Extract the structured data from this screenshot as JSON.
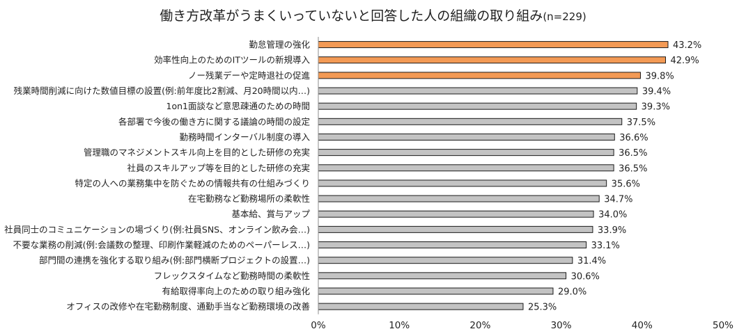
{
  "chart_data": {
    "type": "bar",
    "orientation": "horizontal",
    "title": "働き方改革がうまくいっていないと回答した人の組織の取り組み",
    "title_suffix": "(n=229)",
    "categories": [
      "勤怠管理の強化",
      "効率性向上のためのITツールの新規導入",
      "ノー残業デーや定時退社の促進",
      "残業時間削減に向けた数値目標の設置(例:前年度比2割減、月20時間以内…)",
      "1on1面談など意思疎通のための時間",
      "各部署で今後の働き方に関する議論の時間の設定",
      "勤務時間インターバル制度の導入",
      "管理職のマネジメントスキル向上を目的とした研修の充実",
      "社員のスキルアップ等を目的とした研修の充実",
      "特定の人への業務集中を防ぐための情報共有の仕組みづくり",
      "在宅勤務など勤務場所の柔軟性",
      "基本給、賞与アップ",
      "社員同士のコミュニケーションの場づくり(例:社員SNS、オンライン飲み会…)",
      "不要な業務の削減(例:会議数の整理、印刷作業軽減のためのペーパーレス…)",
      "部門間の連携を強化する取り組み(例:部門横断プロジェクトの設置…)",
      "フレックスタイムなど勤務時間の柔軟性",
      "有給取得率向上のための取り組み強化",
      "オフィスの改修や在宅勤務制度、通勤手当など勤務環境の改善"
    ],
    "values": [
      43.2,
      42.9,
      39.8,
      39.4,
      39.3,
      37.5,
      36.6,
      36.5,
      36.5,
      35.6,
      34.7,
      34.0,
      33.9,
      33.1,
      31.4,
      30.6,
      29.0,
      25.3
    ],
    "value_labels": [
      "43.2%",
      "42.9%",
      "39.8%",
      "39.4%",
      "39.3%",
      "37.5%",
      "36.6%",
      "36.5%",
      "36.5%",
      "35.6%",
      "34.7%",
      "34.0%",
      "33.9%",
      "33.1%",
      "31.4%",
      "30.6%",
      "29.0%",
      "25.3%"
    ],
    "highlighted_count": 3,
    "xlim": [
      0,
      50
    ],
    "xticks": [
      0,
      10,
      20,
      30,
      40,
      50
    ],
    "xtick_labels": [
      "0%",
      "10%",
      "20%",
      "30%",
      "40%",
      "50%"
    ],
    "grid": false,
    "legend": "none",
    "colors": {
      "highlight": "#f39a55",
      "default": "#c3c3c3",
      "bar_stroke": "#1a1a1a",
      "axis": "#8c8c8c"
    }
  }
}
